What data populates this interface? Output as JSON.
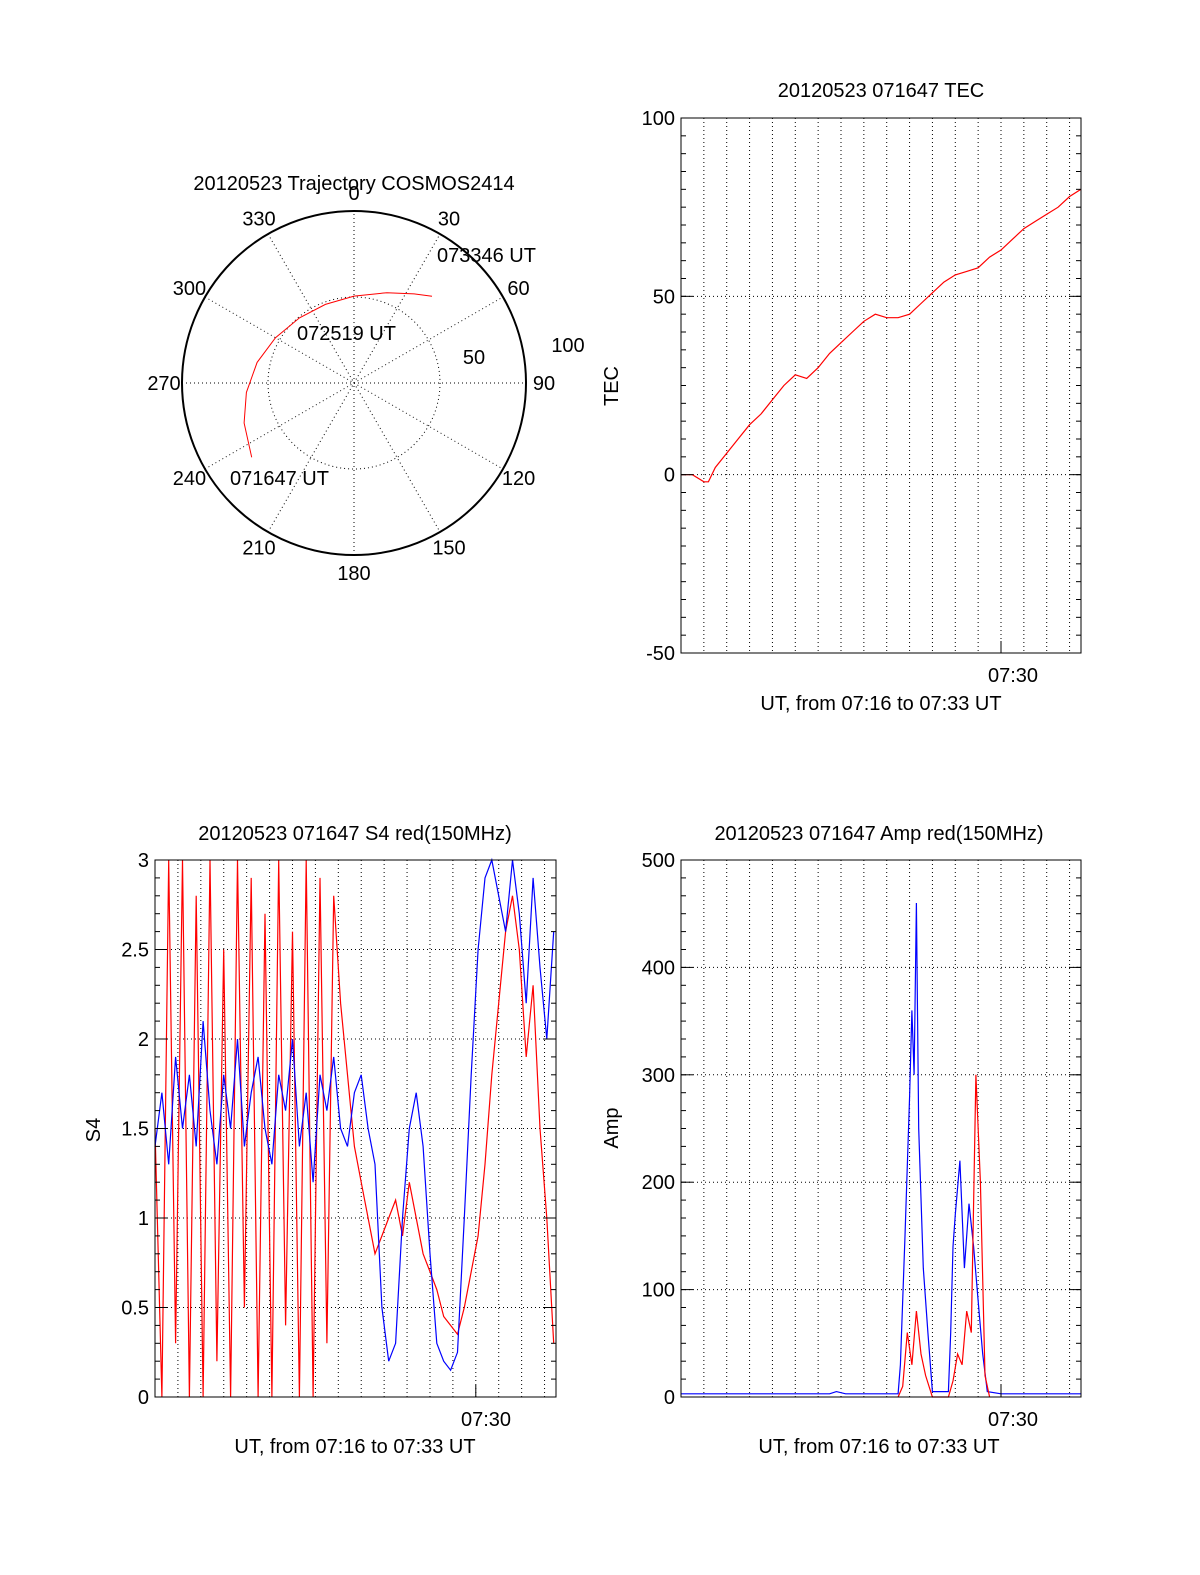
{
  "chart_data": [
    {
      "type": "polar",
      "title": "20120523 Trajectory COSMOS2414",
      "angle_labels": [
        "0",
        "30",
        "60",
        "90",
        "120",
        "150",
        "180",
        "210",
        "240",
        "270",
        "300",
        "330"
      ],
      "radius_labels": [
        "50",
        "100"
      ],
      "trajectory": {
        "color": "#ff0000",
        "points": [
          {
            "azimuth": 234,
            "radius": 73.5
          },
          {
            "azimuth": 250,
            "radius": 68.0
          },
          {
            "azimuth": 265,
            "radius": 62.8
          },
          {
            "azimuth": 282,
            "radius": 57.6
          },
          {
            "azimuth": 300,
            "radius": 52.7
          },
          {
            "azimuth": 320,
            "radius": 49.4
          },
          {
            "azimuth": 340,
            "radius": 48.6
          },
          {
            "azimuth": 0,
            "radius": 50.5
          },
          {
            "azimuth": 20,
            "radius": 55.9
          },
          {
            "azimuth": 34,
            "radius": 62.5
          },
          {
            "azimuth": 42,
            "radius": 67.8
          }
        ]
      },
      "annotations": [
        "073346 UT",
        "072519 UT",
        "071647 UT"
      ]
    },
    {
      "type": "line",
      "title": "20120523 071647 TEC",
      "xlabel": "UT, from 07:16 to 07:33 UT",
      "ylabel": "TEC",
      "xlim": [
        0,
        17.5
      ],
      "ylim": [
        -50,
        100
      ],
      "yticks": [
        "100",
        "50",
        "0",
        "-50"
      ],
      "xtick": {
        "label": "07:30",
        "value": 14
      },
      "grid": true,
      "series": [
        {
          "color": "#ff0000",
          "x": [
            0,
            0.5,
            1.0,
            1.2,
            1.5,
            2.0,
            2.5,
            3.0,
            3.5,
            4.0,
            4.5,
            5.0,
            5.5,
            6.0,
            6.5,
            7.0,
            7.5,
            8.0,
            8.5,
            9.0,
            9.5,
            10.0,
            10.5,
            11.0,
            11.5,
            12.0,
            12.5,
            13.0,
            13.5,
            14.0,
            14.5,
            15.0,
            15.5,
            16.0,
            16.5,
            17.0,
            17.5
          ],
          "y": [
            0,
            0,
            -2,
            -2,
            2,
            6,
            10,
            14,
            17,
            21,
            25,
            28,
            27,
            30,
            34,
            37,
            40,
            43,
            45,
            44,
            44,
            45,
            48,
            51,
            54,
            56,
            57,
            58,
            61,
            63,
            66,
            69,
            71,
            73,
            75,
            78,
            80
          ]
        }
      ]
    },
    {
      "type": "line",
      "title": "20120523 071647 S4 red(150MHz)",
      "xlabel": "UT, from 07:16 to 07:33 UT",
      "ylabel": "S4",
      "xlim": [
        0,
        17.5
      ],
      "ylim": [
        0,
        3
      ],
      "yticks": [
        "3",
        "2.5",
        "2",
        "1.5",
        "1",
        "0.5",
        "0"
      ],
      "xtick": {
        "label": "07:30",
        "value": 14
      },
      "grid": true,
      "series": [
        {
          "color": "#ff0000",
          "x": [
            0,
            0.3,
            0.6,
            0.9,
            1.2,
            1.5,
            1.8,
            2.1,
            2.4,
            2.7,
            3.0,
            3.3,
            3.6,
            3.9,
            4.2,
            4.5,
            4.8,
            5.1,
            5.4,
            5.7,
            6.0,
            6.3,
            6.6,
            6.9,
            7.2,
            7.5,
            7.8,
            8.1,
            8.4,
            8.7,
            9.0,
            9.3,
            9.6,
            9.9,
            10.2,
            10.5,
            10.8,
            11.1,
            11.4,
            11.7,
            12.0,
            12.3,
            12.6,
            12.9,
            13.2,
            13.5,
            13.8,
            14.1,
            14.4,
            14.7,
            15.0,
            15.3,
            15.6,
            15.9,
            16.2,
            16.5,
            16.8,
            17.1,
            17.4
          ],
          "y": [
            1.5,
            0,
            3,
            0.3,
            3,
            0,
            2.8,
            0,
            3,
            0.2,
            2.5,
            0,
            3,
            0.5,
            2.9,
            0,
            2.7,
            0,
            3,
            0.4,
            2.6,
            0,
            3,
            0,
            2.9,
            0.3,
            2.8,
            2.2,
            1.8,
            1.4,
            1.2,
            1.0,
            0.8,
            0.9,
            1.0,
            1.1,
            0.9,
            1.2,
            1.0,
            0.8,
            0.7,
            0.6,
            0.45,
            0.4,
            0.35,
            0.5,
            0.7,
            0.9,
            1.3,
            1.8,
            2.2,
            2.6,
            2.8,
            2.5,
            1.9,
            2.3,
            1.5,
            1.0,
            0.3
          ]
        },
        {
          "color": "#0000ff",
          "x": [
            0,
            0.3,
            0.6,
            0.9,
            1.2,
            1.5,
            1.8,
            2.1,
            2.4,
            2.7,
            3.0,
            3.3,
            3.6,
            3.9,
            4.2,
            4.5,
            4.8,
            5.1,
            5.4,
            5.7,
            6.0,
            6.3,
            6.6,
            6.9,
            7.2,
            7.5,
            7.8,
            8.1,
            8.4,
            8.7,
            9.0,
            9.3,
            9.6,
            9.9,
            10.2,
            10.5,
            10.8,
            11.1,
            11.4,
            11.7,
            12.0,
            12.3,
            12.6,
            12.9,
            13.2,
            13.5,
            13.8,
            14.1,
            14.4,
            14.7,
            15.0,
            15.3,
            15.6,
            15.9,
            16.2,
            16.5,
            16.8,
            17.1,
            17.4
          ],
          "y": [
            1.4,
            1.7,
            1.3,
            1.9,
            1.5,
            1.8,
            1.4,
            2.1,
            1.6,
            1.3,
            1.8,
            1.5,
            2.0,
            1.4,
            1.7,
            1.9,
            1.5,
            1.3,
            1.8,
            1.6,
            2.0,
            1.4,
            1.7,
            1.2,
            1.8,
            1.6,
            1.9,
            1.5,
            1.4,
            1.7,
            1.8,
            1.5,
            1.3,
            0.5,
            0.2,
            0.3,
            1.0,
            1.5,
            1.7,
            1.4,
            0.8,
            0.3,
            0.2,
            0.15,
            0.25,
            1.0,
            1.8,
            2.5,
            2.9,
            3.0,
            2.8,
            2.6,
            3.0,
            2.7,
            2.2,
            2.9,
            2.4,
            2.0,
            2.6
          ]
        }
      ]
    },
    {
      "type": "line",
      "title": "20120523 071647 Amp red(150MHz)",
      "xlabel": "UT, from 07:16 to 07:33 UT",
      "ylabel": "Amp",
      "xlim": [
        0,
        17.5
      ],
      "ylim": [
        0,
        500
      ],
      "yticks": [
        "500",
        "400",
        "300",
        "200",
        "100",
        "0"
      ],
      "xtick": {
        "label": "07:30",
        "value": 14
      },
      "grid": true,
      "series": [
        {
          "color": "#0000ff",
          "x": [
            0,
            6.5,
            6.8,
            7.2,
            9.5,
            9.6,
            9.8,
            10.0,
            10.1,
            10.2,
            10.3,
            10.4,
            10.6,
            10.8,
            11.0,
            11.7,
            11.8,
            11.9,
            12.0,
            12.2,
            12.4,
            12.6,
            12.8,
            13.0,
            13.2,
            13.4,
            14.0,
            17.5
          ],
          "y": [
            3,
            3,
            5,
            3,
            3,
            30,
            150,
            280,
            360,
            300,
            460,
            250,
            120,
            60,
            5,
            5,
            60,
            140,
            170,
            220,
            120,
            180,
            140,
            90,
            40,
            5,
            3,
            3
          ]
        },
        {
          "color": "#ff0000",
          "x": [
            9.5,
            9.7,
            9.9,
            10.1,
            10.3,
            10.5,
            10.7,
            11.0,
            11.7,
            11.9,
            12.1,
            12.3,
            12.5,
            12.7,
            12.9,
            13.1,
            13.3,
            13.5
          ],
          "y": [
            0,
            10,
            60,
            30,
            80,
            40,
            20,
            0,
            0,
            15,
            40,
            30,
            80,
            60,
            300,
            200,
            20,
            0
          ]
        }
      ]
    }
  ]
}
